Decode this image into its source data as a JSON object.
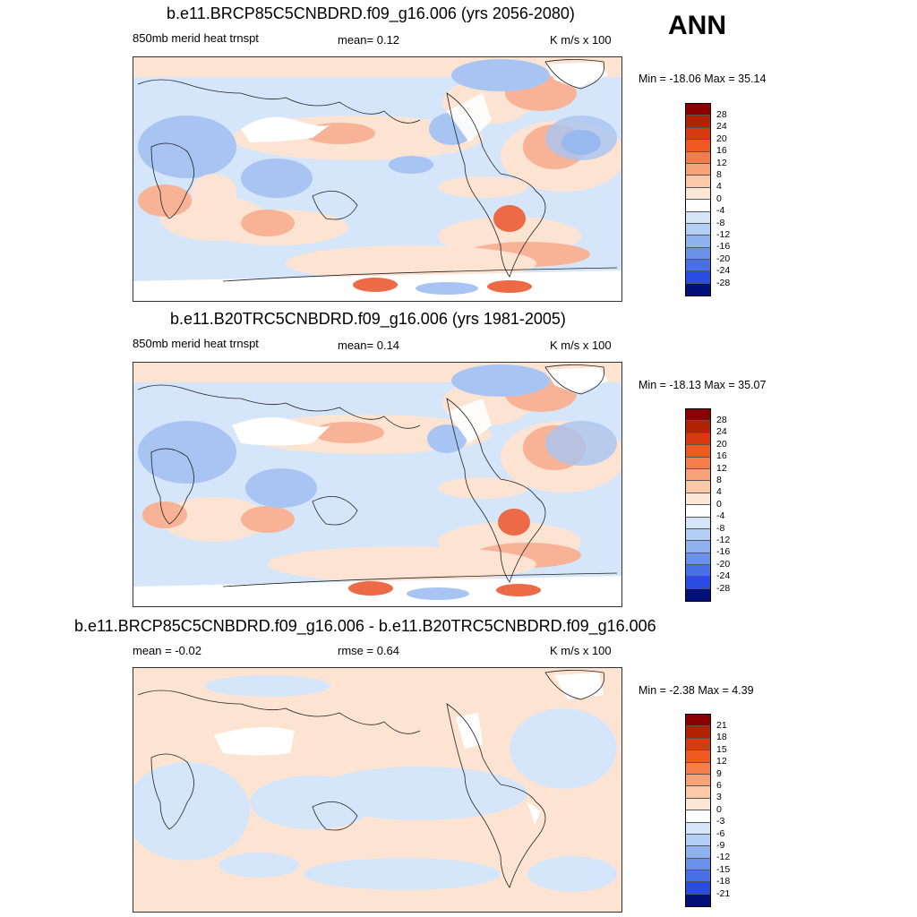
{
  "season": "ANN",
  "panels": [
    {
      "title": "b.e11.BRCP85C5CNBDRD.f09_g16.006 (yrs 2056-2080)",
      "left_label": "850mb merid heat trnspt",
      "center_label": "mean=   0.12",
      "units": "K m/s x 100",
      "minmax": "Min = -18.06 Max =  35.14",
      "levels": [
        "28",
        "24",
        "20",
        "16",
        "12",
        "8",
        "4",
        "0",
        "-4",
        "-8",
        "-12",
        "-16",
        "-20",
        "-24",
        "-28"
      ]
    },
    {
      "title": "b.e11.B20TRC5CNBDRD.f09_g16.006 (yrs 1981-2005)",
      "left_label": "850mb merid heat trnspt",
      "center_label": "mean=   0.14",
      "units": "K m/s x 100",
      "minmax": "Min = -18.13 Max =  35.07",
      "levels": [
        "28",
        "24",
        "20",
        "16",
        "12",
        "8",
        "4",
        "0",
        "-4",
        "-8",
        "-12",
        "-16",
        "-20",
        "-24",
        "-28"
      ]
    },
    {
      "title": "b.e11.BRCP85C5CNBDRD.f09_g16.006 - b.e11.B20TRC5CNBDRD.f09_g16.006",
      "left_label": "mean =  -0.02",
      "center_label": "rmse =   0.64",
      "units": "K m/s x 100",
      "minmax": "Min =  -2.38 Max =   4.39",
      "levels": [
        "21",
        "18",
        "15",
        "12",
        "9",
        "6",
        "3",
        "0",
        "-3",
        "-6",
        "-9",
        "-12",
        "-15",
        "-18",
        "-21"
      ]
    }
  ],
  "colorbar_colors": [
    "#8b0000",
    "#b22200",
    "#d83a10",
    "#f05a20",
    "#f47d4a",
    "#f8a27a",
    "#fbc8a8",
    "#fde8d8",
    "#ffffff",
    "#d6e6fa",
    "#b4cff5",
    "#8fb1f0",
    "#6b92eb",
    "#4a70e8",
    "#2a4ce0",
    "#1128c8",
    "#00107a"
  ],
  "map_colors": {
    "ocean_neutral": "#d6e6fa",
    "warm_light": "#fde3d2",
    "warm_mid": "#f8b295",
    "warm_strong": "#ec6a45",
    "cool_light": "#d6e6fa",
    "cool_mid": "#a7c4f3",
    "cool_strong": "#5d85e6",
    "land_blank": "#ffffff",
    "coast": "#222222"
  }
}
